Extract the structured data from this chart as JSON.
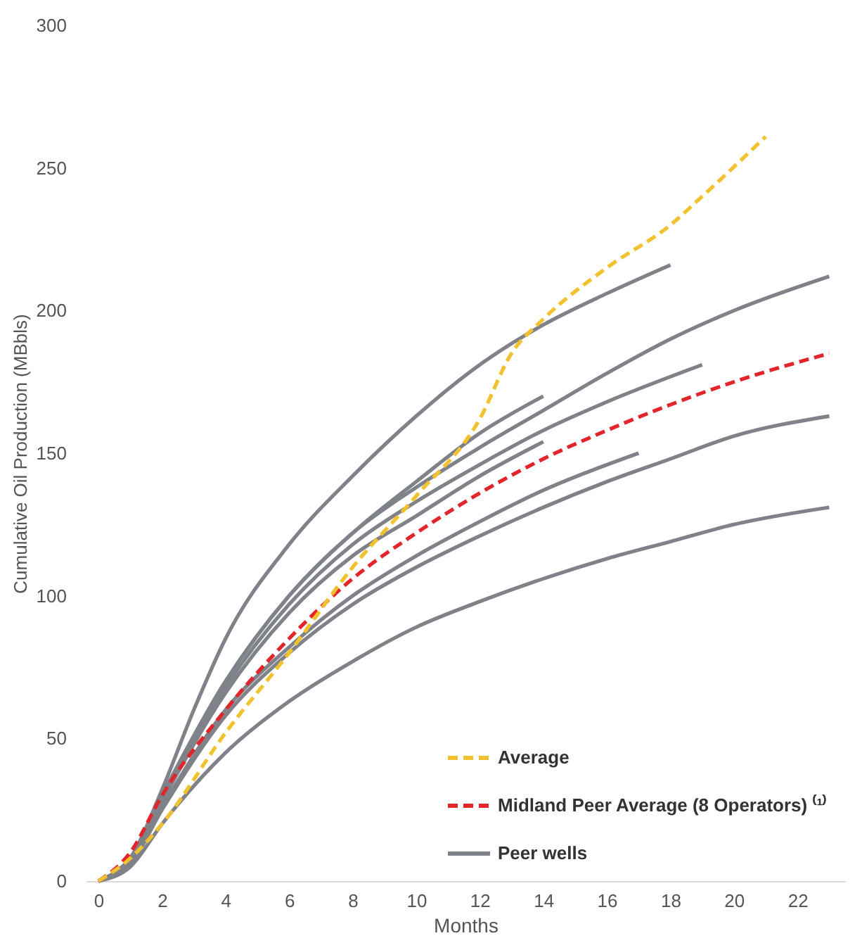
{
  "chart_data": {
    "type": "line",
    "xlabel": "Months",
    "ylabel": "Cumulative Oil Production (MBbls)",
    "xlim": [
      -0.4,
      23.5
    ],
    "ylim": [
      0,
      300
    ],
    "xticks": [
      0,
      2,
      4,
      6,
      8,
      10,
      12,
      14,
      16,
      18,
      20,
      22
    ],
    "yticks": [
      0,
      50,
      100,
      150,
      200,
      250,
      300
    ],
    "grid": false,
    "legend": "bottom right",
    "marker": "none",
    "series": [
      {
        "name": "Average",
        "color": "#f2c12e",
        "line_style": "dashed",
        "x": [
          0,
          1,
          2,
          4,
          6,
          8,
          10,
          12,
          13,
          14,
          16,
          18,
          19,
          21
        ],
        "values": [
          0,
          8,
          20,
          52,
          80,
          110,
          135,
          162,
          185,
          197,
          215,
          230,
          240,
          261
        ]
      },
      {
        "name": "Midland Peer Average (8 Operators) ⁽¹⁾",
        "color": "#e2252b",
        "line_style": "dashed",
        "x": [
          0,
          1,
          2,
          4,
          6,
          8,
          10,
          12,
          14,
          16,
          18,
          20,
          23
        ],
        "values": [
          0,
          10,
          30,
          60,
          85,
          106,
          122,
          136,
          148,
          158,
          167,
          175,
          185
        ]
      },
      {
        "name": "Peer wells",
        "color": "#7f8288",
        "line_style": "solid",
        "x": [
          0,
          1,
          2,
          3,
          4,
          6,
          8,
          10,
          12,
          14,
          16,
          18
        ],
        "values": [
          0,
          8,
          32,
          60,
          85,
          118,
          142,
          163,
          181,
          195,
          206,
          216
        ]
      },
      {
        "color": "#7f8288",
        "line_style": "solid",
        "x": [
          0,
          1,
          2,
          4,
          6,
          8,
          10,
          12,
          14,
          16,
          18,
          20,
          23
        ],
        "values": [
          0,
          8,
          30,
          70,
          100,
          122,
          138,
          152,
          165,
          178,
          190,
          200,
          212
        ]
      },
      {
        "color": "#7f8288",
        "line_style": "solid",
        "x": [
          0,
          1,
          2,
          4,
          6,
          8,
          10,
          12,
          14
        ],
        "values": [
          0,
          8,
          30,
          70,
          100,
          122,
          140,
          157,
          170
        ]
      },
      {
        "color": "#7f8288",
        "line_style": "solid",
        "x": [
          0,
          1,
          2,
          4,
          6,
          8,
          10,
          12,
          14,
          16,
          19
        ],
        "values": [
          0,
          8,
          28,
          68,
          97,
          118,
          133,
          146,
          158,
          168,
          181
        ]
      },
      {
        "color": "#7f8288",
        "line_style": "solid",
        "x": [
          0,
          1,
          2,
          4,
          6,
          8,
          10,
          12,
          14
        ],
        "values": [
          0,
          7,
          28,
          66,
          94,
          114,
          128,
          142,
          154
        ]
      },
      {
        "color": "#7f8288",
        "line_style": "solid",
        "x": [
          0,
          1,
          2,
          4,
          6,
          8,
          10,
          12,
          14,
          17
        ],
        "values": [
          0,
          7,
          26,
          60,
          82,
          100,
          114,
          126,
          137,
          150
        ]
      },
      {
        "color": "#7f8288",
        "line_style": "solid",
        "x": [
          0,
          1,
          2,
          4,
          6,
          8,
          10,
          12,
          14,
          16,
          18,
          20,
          23
        ],
        "values": [
          0,
          6,
          25,
          58,
          80,
          97,
          110,
          121,
          131,
          140,
          148,
          156,
          163
        ]
      },
      {
        "color": "#7f8288",
        "line_style": "solid",
        "x": [
          0,
          1,
          2,
          4,
          6,
          8,
          10,
          12,
          14,
          16,
          18,
          20,
          23
        ],
        "values": [
          0,
          5,
          20,
          45,
          63,
          77,
          89,
          98,
          106,
          113,
          119,
          125,
          131
        ]
      }
    ]
  }
}
